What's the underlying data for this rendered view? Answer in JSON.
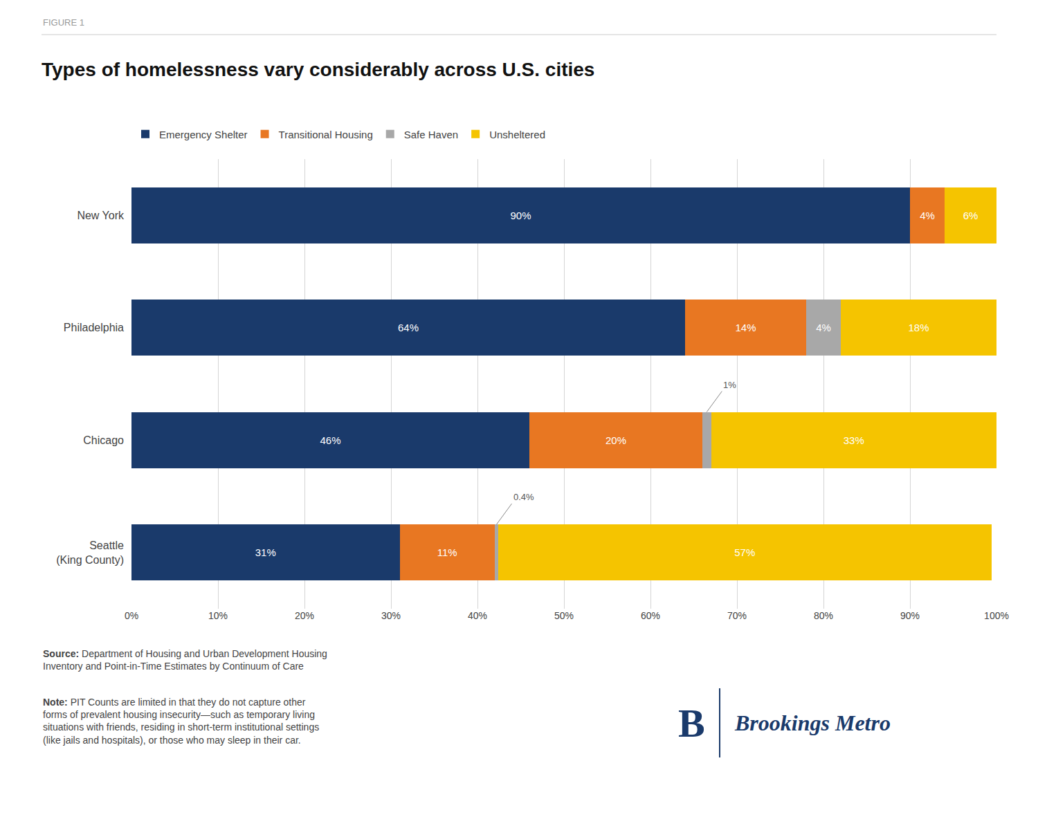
{
  "chart_data": {
    "type": "bar",
    "orientation": "horizontal",
    "stacked": true,
    "title": "Types of homelessness vary considerably across U.S. cities",
    "figure_label": "FIGURE 1",
    "categories": [
      "New York",
      "Philadelphia",
      "Chicago",
      "Seattle\n(King County)"
    ],
    "series": [
      {
        "name": "Emergency Shelter",
        "color": "#1a3a6b",
        "values": [
          90,
          64,
          46,
          31
        ],
        "value_labels": [
          "90%",
          "64%",
          "46%",
          "31%"
        ]
      },
      {
        "name": "Transitional Housing",
        "color": "#e87722",
        "values": [
          4,
          14,
          20,
          11
        ],
        "value_labels": [
          "4%",
          "14%",
          "20%",
          "11%"
        ]
      },
      {
        "name": "Safe Haven",
        "color": "#a8a8a8",
        "values": [
          0,
          4,
          1,
          0.4
        ],
        "value_labels": [
          null,
          "4%",
          "1%",
          "0.4%"
        ]
      },
      {
        "name": "Unsheltered",
        "color": "#f5c400",
        "values": [
          6,
          18,
          33,
          57
        ],
        "value_labels": [
          "6%",
          "18%",
          "33%",
          "57%"
        ]
      }
    ],
    "xlim": [
      0,
      100
    ],
    "xticks": [
      {
        "value": 0,
        "label": "0%"
      },
      {
        "value": 10,
        "label": "10%"
      },
      {
        "value": 20,
        "label": "20%"
      },
      {
        "value": 30,
        "label": "30%"
      },
      {
        "value": 40,
        "label": "40%"
      },
      {
        "value": 50,
        "label": "50%"
      },
      {
        "value": 60,
        "label": "60%"
      },
      {
        "value": 70,
        "label": "70%"
      },
      {
        "value": 80,
        "label": "80%"
      },
      {
        "value": 90,
        "label": "90%"
      },
      {
        "value": 100,
        "label": "100%"
      }
    ],
    "grid": true,
    "legend": "top",
    "data_labels": true,
    "source_label": "Source:",
    "source": "Department of Housing and Urban Development Housing\nInventory and Point-in-Time Estimates by Continuum of Care",
    "note_label": "Note:",
    "note": "PIT Counts are limited in that they do not capture other\nforms of prevalent housing insecurity—such as temporary living\nsituations with friends, residing in short-term institutional settings\n(like jails and hospitals), or those who may sleep in their car.",
    "logo_mark": "B",
    "logo": "Brookings Metro"
  }
}
